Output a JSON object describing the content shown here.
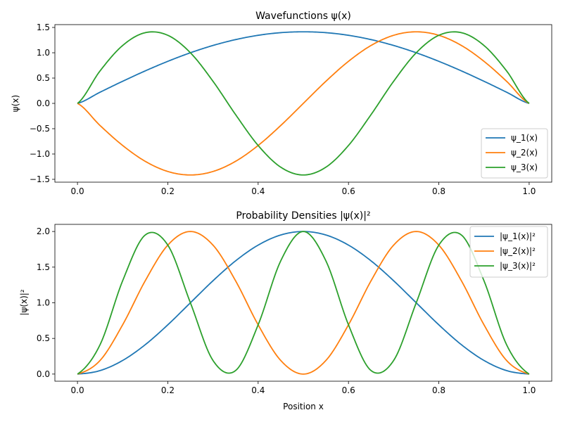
{
  "chart_data": [
    {
      "type": "line",
      "title": "Wavefunctions ψ(x)",
      "xlabel": "",
      "ylabel": "ψ(x)",
      "xlim": [
        -0.05,
        1.05
      ],
      "ylim": [
        -1.556,
        1.556
      ],
      "x_ticks": [
        0.0,
        0.2,
        0.4,
        0.6,
        0.8,
        1.0
      ],
      "x_tick_labels": [
        "0.0",
        "0.2",
        "0.4",
        "0.6",
        "0.8",
        "1.0"
      ],
      "y_ticks": [
        -1.5,
        -1.0,
        -0.5,
        0.0,
        0.5,
        1.0,
        1.5
      ],
      "y_tick_labels": [
        "−1.5",
        "−1.0",
        "−0.5",
        "0.0",
        "0.5",
        "1.0",
        "1.5"
      ],
      "grid": false,
      "legend_position": "lower-right",
      "x": [
        0.0,
        0.05,
        0.1,
        0.15,
        0.2,
        0.25,
        0.3,
        0.35,
        0.4,
        0.45,
        0.5,
        0.55,
        0.6,
        0.65,
        0.7,
        0.75,
        0.8,
        0.85,
        0.9,
        0.95,
        1.0
      ],
      "series": [
        {
          "name": "ψ_1(x)",
          "color": "#1f77b4",
          "values": [
            0.0,
            0.221,
            0.437,
            0.642,
            0.831,
            1.0,
            1.144,
            1.26,
            1.345,
            1.397,
            1.414,
            1.397,
            1.345,
            1.26,
            1.144,
            1.0,
            0.831,
            0.642,
            0.437,
            0.221,
            0.0
          ]
        },
        {
          "name": "ψ_2(x)",
          "color": "#ff7f0e",
          "values": [
            0.0,
            -0.437,
            -0.831,
            -1.144,
            -1.345,
            -1.414,
            -1.345,
            -1.144,
            -0.831,
            -0.437,
            0.0,
            0.437,
            0.831,
            1.144,
            1.345,
            1.414,
            1.345,
            1.144,
            0.831,
            0.437,
            0.0
          ]
        },
        {
          "name": "ψ_3(x)",
          "color": "#2ca02c",
          "values": [
            0.0,
            0.642,
            1.144,
            1.397,
            1.345,
            1.0,
            0.437,
            -0.221,
            -0.831,
            -1.26,
            -1.414,
            -1.26,
            -0.831,
            -0.221,
            0.437,
            1.0,
            1.345,
            1.397,
            1.144,
            0.642,
            0.0
          ]
        }
      ]
    },
    {
      "type": "line",
      "title": "Probability Densities |ψ(x)|²",
      "xlabel": "Position x",
      "ylabel": "|ψ(x)|²",
      "xlim": [
        -0.05,
        1.05
      ],
      "ylim": [
        -0.1,
        2.1
      ],
      "x_ticks": [
        0.0,
        0.2,
        0.4,
        0.6,
        0.8,
        1.0
      ],
      "x_tick_labels": [
        "0.0",
        "0.2",
        "0.4",
        "0.6",
        "0.8",
        "1.0"
      ],
      "y_ticks": [
        0.0,
        0.5,
        1.0,
        1.5,
        2.0
      ],
      "y_tick_labels": [
        "0.0",
        "0.5",
        "1.0",
        "1.5",
        "2.0"
      ],
      "grid": false,
      "legend_position": "upper-right",
      "x": [
        0.0,
        0.05,
        0.1,
        0.15,
        0.2,
        0.25,
        0.3,
        0.35,
        0.4,
        0.45,
        0.5,
        0.55,
        0.6,
        0.65,
        0.7,
        0.75,
        0.8,
        0.85,
        0.9,
        0.95,
        1.0
      ],
      "series": [
        {
          "name": "|ψ_1(x)|²",
          "color": "#1f77b4",
          "values": [
            0.0,
            0.049,
            0.191,
            0.412,
            0.691,
            1.0,
            1.309,
            1.588,
            1.809,
            1.951,
            2.0,
            1.951,
            1.809,
            1.588,
            1.309,
            1.0,
            0.691,
            0.412,
            0.191,
            0.049,
            0.0
          ]
        },
        {
          "name": "|ψ_2(x)|²",
          "color": "#ff7f0e",
          "values": [
            0.0,
            0.191,
            0.691,
            1.309,
            1.809,
            2.0,
            1.809,
            1.309,
            0.691,
            0.191,
            0.0,
            0.191,
            0.691,
            1.309,
            1.809,
            2.0,
            1.809,
            1.309,
            0.691,
            0.191,
            0.0
          ]
        },
        {
          "name": "|ψ_3(x)|²",
          "color": "#2ca02c",
          "values": [
            0.0,
            0.412,
            1.309,
            1.951,
            1.809,
            1.0,
            0.191,
            0.049,
            0.691,
            1.588,
            2.0,
            1.588,
            0.691,
            0.049,
            0.191,
            1.0,
            1.809,
            1.951,
            1.309,
            0.412,
            0.0
          ]
        }
      ]
    }
  ]
}
